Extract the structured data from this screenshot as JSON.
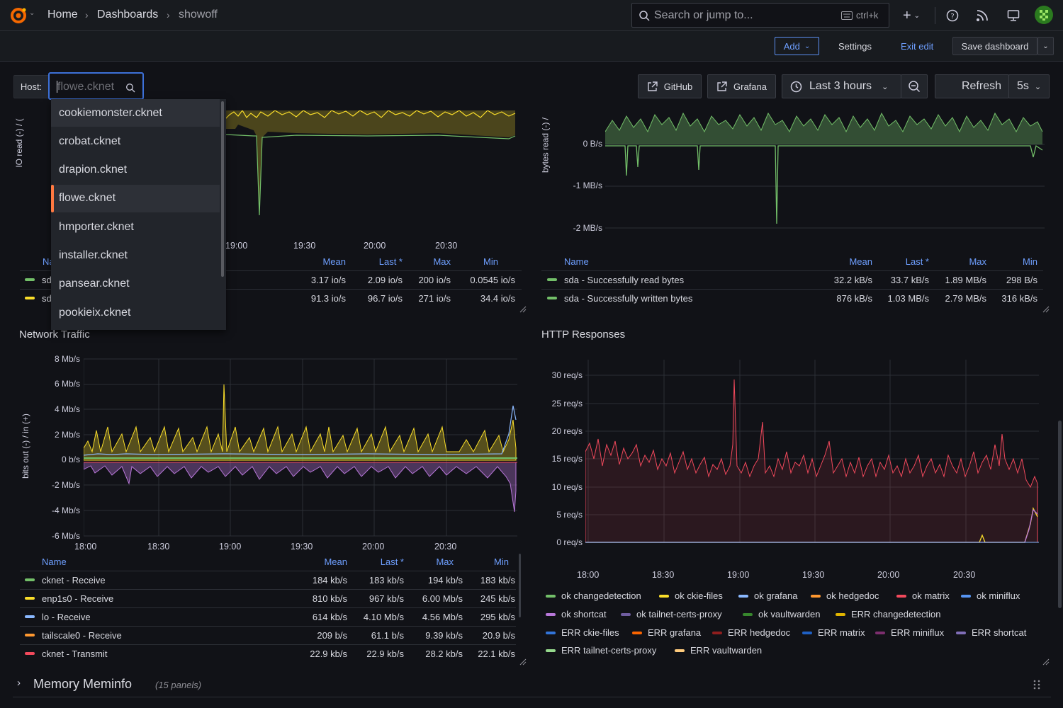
{
  "breadcrumb": {
    "home": "Home",
    "dashboards": "Dashboards",
    "current": "showoff"
  },
  "search": {
    "placeholder": "Search or jump to...",
    "shortcut": "ctrl+k"
  },
  "toolbar": {
    "add": "Add",
    "settings": "Settings",
    "exit_edit": "Exit edit",
    "save": "Save dashboard"
  },
  "controls": {
    "host_label": "Host:",
    "host_placeholder": "flowe.cknet",
    "github": "GitHub",
    "grafana": "Grafana",
    "time_range": "Last 3 hours",
    "refresh": "Refresh",
    "refresh_interval": "5s"
  },
  "host_dropdown": {
    "options": [
      "cookiemonster.cknet",
      "crobat.cknet",
      "drapion.cknet",
      "flowe.cknet",
      "hmporter.cknet",
      "installer.cknet",
      "pansear.cknet",
      "pookieix.cknet"
    ],
    "selected": "flowe.cknet",
    "hovered": "cookiemonster.cknet"
  },
  "io_panel": {
    "ylabel": "IO read (-) / (",
    "xticks": [
      "19:00",
      "19:30",
      "20:00",
      "20:30"
    ],
    "legend": {
      "headers": [
        "Na",
        "Mean",
        "Last *",
        "Max",
        "Min"
      ],
      "rows": [
        {
          "name": "sd",
          "color": "#73bf69",
          "mean": "3.17 io/s",
          "last": "2.09 io/s",
          "max": "200 io/s",
          "min": "0.0545 io/s"
        },
        {
          "name": "sd",
          "color": "#fade2a",
          "mean": "91.3 io/s",
          "last": "96.7 io/s",
          "max": "271 io/s",
          "min": "34.4 io/s"
        }
      ]
    }
  },
  "bytes_panel": {
    "ylabel": "bytes read (-) /",
    "yticks": [
      "0 B/s",
      "-1 MB/s",
      "-2 MB/s"
    ],
    "legend": {
      "headers": [
        "Name",
        "Mean",
        "Last *",
        "Max",
        "Min"
      ],
      "rows": [
        {
          "name": "sda - Successfully read bytes",
          "color": "#73bf69",
          "mean": "32.2 kB/s",
          "last": "33.7 kB/s",
          "max": "1.89 MB/s",
          "min": "298 B/s"
        },
        {
          "name": "sda - Successfully written bytes",
          "color": "#73bf69",
          "mean": "876 kB/s",
          "last": "1.03 MB/s",
          "max": "2.79 MB/s",
          "min": "316 kB/s"
        }
      ]
    }
  },
  "network_panel": {
    "title": "Network Traffic",
    "ylabel": "bits out (-) / in (+)",
    "yticks": [
      "8 Mb/s",
      "6 Mb/s",
      "4 Mb/s",
      "2 Mb/s",
      "0 b/s",
      "-2 Mb/s",
      "-4 Mb/s",
      "-6 Mb/s"
    ],
    "xticks": [
      "18:00",
      "18:30",
      "19:00",
      "19:30",
      "20:00",
      "20:30"
    ],
    "legend": {
      "headers": [
        "Name",
        "Mean",
        "Last *",
        "Max",
        "Min"
      ],
      "rows": [
        {
          "name": "cknet - Receive",
          "color": "#73bf69",
          "mean": "184 kb/s",
          "last": "183 kb/s",
          "max": "194 kb/s",
          "min": "183 kb/s"
        },
        {
          "name": "enp1s0 - Receive",
          "color": "#fade2a",
          "mean": "810 kb/s",
          "last": "967 kb/s",
          "max": "6.00 Mb/s",
          "min": "245 kb/s"
        },
        {
          "name": "lo - Receive",
          "color": "#8ab8ff",
          "mean": "614 kb/s",
          "last": "4.10 Mb/s",
          "max": "4.56 Mb/s",
          "min": "295 kb/s"
        },
        {
          "name": "tailscale0 - Receive",
          "color": "#ff9830",
          "mean": "209 b/s",
          "last": "61.1 b/s",
          "max": "9.39 kb/s",
          "min": "20.9 b/s"
        },
        {
          "name": "cknet - Transmit",
          "color": "#f2495c",
          "mean": "22.9 kb/s",
          "last": "22.9 kb/s",
          "max": "28.2 kb/s",
          "min": "22.1 kb/s"
        }
      ]
    }
  },
  "http_panel": {
    "title": "HTTP Responses",
    "yticks": [
      "30 req/s",
      "25 req/s",
      "20 req/s",
      "15 req/s",
      "10 req/s",
      "5 req/s",
      "0 req/s"
    ],
    "xticks": [
      "18:00",
      "18:30",
      "19:00",
      "19:30",
      "20:00",
      "20:30"
    ],
    "legend": [
      {
        "name": "ok changedetection",
        "color": "#73bf69"
      },
      {
        "name": "ok ckie-files",
        "color": "#fade2a"
      },
      {
        "name": "ok grafana",
        "color": "#8ab8ff"
      },
      {
        "name": "ok hedgedoc",
        "color": "#ff9830"
      },
      {
        "name": "ok matrix",
        "color": "#f2495c"
      },
      {
        "name": "ok miniflux",
        "color": "#5794f2"
      },
      {
        "name": "ok shortcat",
        "color": "#b877d9"
      },
      {
        "name": "ok tailnet-certs-proxy",
        "color": "#705da0"
      },
      {
        "name": "ok vaultwarden",
        "color": "#37872d"
      },
      {
        "name": "ERR changedetection",
        "color": "#e0b400"
      },
      {
        "name": "ERR ckie-files",
        "color": "#3274d9"
      },
      {
        "name": "ERR grafana",
        "color": "#fa6400"
      },
      {
        "name": "ERR hedgedoc",
        "color": "#8f1e1e"
      },
      {
        "name": "ERR matrix",
        "color": "#1f60c4"
      },
      {
        "name": "ERR miniflux",
        "color": "#7c2e6e"
      },
      {
        "name": "ERR shortcat",
        "color": "#806eb7"
      },
      {
        "name": "ERR tailnet-certs-proxy",
        "color": "#96d98d"
      },
      {
        "name": "ERR vaultwarden",
        "color": "#ffcb7d"
      }
    ]
  },
  "row": {
    "title": "Memory Meminfo",
    "count": "(15 panels)"
  }
}
